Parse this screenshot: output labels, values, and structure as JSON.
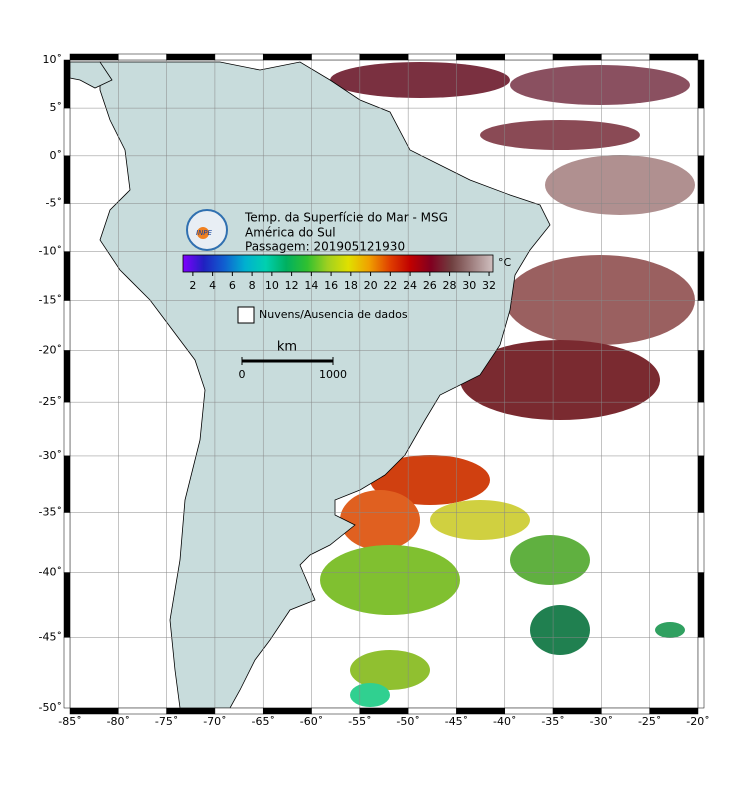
{
  "map": {
    "projection": "mercator",
    "xlim": [
      -85,
      -20
    ],
    "ylim": [
      -50,
      10
    ],
    "grid": true,
    "xticks": [
      {
        "value": -85,
        "label": "-85˚"
      },
      {
        "value": -80,
        "label": "-80˚"
      },
      {
        "value": -75,
        "label": "-75˚"
      },
      {
        "value": -70,
        "label": "-70˚"
      },
      {
        "value": -65,
        "label": "-65˚"
      },
      {
        "value": -60,
        "label": "-60˚"
      },
      {
        "value": -55,
        "label": "-55˚"
      },
      {
        "value": -50,
        "label": "-50˚"
      },
      {
        "value": -45,
        "label": "-45˚"
      },
      {
        "value": -40,
        "label": "-40˚"
      },
      {
        "value": -35,
        "label": "-35˚"
      },
      {
        "value": -30,
        "label": "-30˚"
      },
      {
        "value": -25,
        "label": "-25˚"
      },
      {
        "value": -20,
        "label": "-20˚"
      }
    ],
    "yticks": [
      {
        "value": 10,
        "label": "10˚"
      },
      {
        "value": 5,
        "label": "5˚"
      },
      {
        "value": 0,
        "label": "0˚"
      },
      {
        "value": -5,
        "label": "-5˚"
      },
      {
        "value": -10,
        "label": "-10˚"
      },
      {
        "value": -15,
        "label": "-15˚"
      },
      {
        "value": -20,
        "label": "-20˚"
      },
      {
        "value": -25,
        "label": "-25˚"
      },
      {
        "value": -30,
        "label": "-30˚"
      },
      {
        "value": -35,
        "label": "-35˚"
      },
      {
        "value": -40,
        "label": "-40˚"
      },
      {
        "value": -45,
        "label": "-45˚"
      },
      {
        "value": -50,
        "label": "-50˚"
      }
    ],
    "logo": "INPE",
    "title_lines": [
      "Temp. da Superfície do Mar - MSG",
      "América do Sul",
      "Passagem: 201905121930"
    ],
    "colorbar": {
      "unit": "°C",
      "lim": [
        1,
        32.4
      ],
      "ticks": [
        2,
        4,
        6,
        8,
        10,
        12,
        14,
        16,
        18,
        20,
        22,
        24,
        26,
        28,
        30,
        32
      ],
      "colors": [
        "#8000ff",
        "#2020c0",
        "#1060d0",
        "#00b0d0",
        "#00d0b0",
        "#00b060",
        "#30c030",
        "#a0d020",
        "#e0e000",
        "#f0a000",
        "#e04000",
        "#c00000",
        "#800020",
        "#704040",
        "#a08080",
        "#d0c0c0"
      ]
    },
    "legend": "Nuvens/Ausencia de dados",
    "scalebar": {
      "unit": "km",
      "ticks": [
        0,
        1000
      ]
    }
  }
}
